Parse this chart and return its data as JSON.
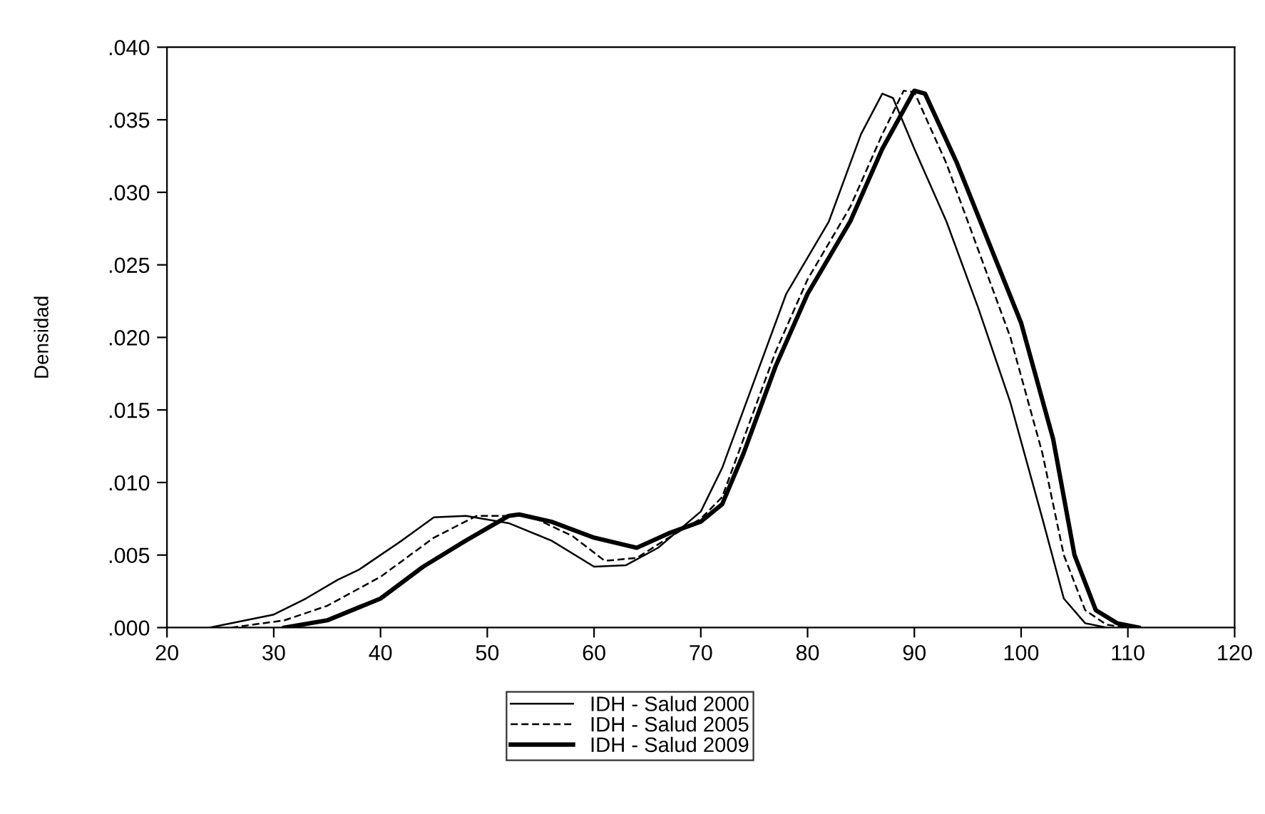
{
  "chart_data": {
    "type": "line",
    "ylabel": "Densidad",
    "xlim": [
      20,
      120
    ],
    "ylim": [
      0,
      0.04
    ],
    "xticks": [
      20,
      30,
      40,
      50,
      60,
      70,
      80,
      90,
      100,
      110,
      120
    ],
    "yticks": [
      {
        "value": 0,
        "label": ".000"
      },
      {
        "value": 0.005,
        "label": ".005"
      },
      {
        "value": 0.01,
        "label": ".010"
      },
      {
        "value": 0.015,
        "label": ".015"
      },
      {
        "value": 0.02,
        "label": ".020"
      },
      {
        "value": 0.025,
        "label": ".025"
      },
      {
        "value": 0.03,
        "label": ".030"
      },
      {
        "value": 0.035,
        "label": ".035"
      },
      {
        "value": 0.04,
        "label": ".040"
      }
    ],
    "grid": false,
    "legend": "bottom",
    "marker": "none",
    "series": [
      {
        "name": "IDH - Salud 2000",
        "color": "#000000",
        "line_style": "solid",
        "x": [
          24,
          30,
          33,
          36,
          38,
          42,
          45,
          48,
          52,
          56,
          60,
          63,
          66,
          70,
          72,
          75,
          78,
          82,
          85,
          87,
          88,
          90,
          93,
          96,
          99,
          102,
          104,
          106,
          108
        ],
        "values": [
          0,
          0.0009,
          0.002,
          0.0033,
          0.004,
          0.006,
          0.0076,
          0.0077,
          0.0072,
          0.006,
          0.0042,
          0.0043,
          0.0055,
          0.008,
          0.011,
          0.017,
          0.023,
          0.028,
          0.034,
          0.0368,
          0.0365,
          0.033,
          0.028,
          0.022,
          0.0155,
          0.0075,
          0.002,
          0.0003,
          0
        ]
      },
      {
        "name": "IDH - Salud 2005",
        "color": "#000000",
        "line_style": "dashed",
        "x": [
          26,
          31,
          35,
          40,
          45,
          49,
          54,
          58,
          61,
          64,
          67,
          70,
          72,
          74,
          77,
          80,
          84,
          87,
          89,
          90,
          93,
          96,
          99,
          102,
          104,
          106,
          108,
          110
        ],
        "values": [
          0,
          0.0005,
          0.0015,
          0.0035,
          0.0062,
          0.0077,
          0.0077,
          0.0063,
          0.0046,
          0.0048,
          0.0062,
          0.0075,
          0.009,
          0.013,
          0.019,
          0.024,
          0.029,
          0.034,
          0.037,
          0.0369,
          0.032,
          0.026,
          0.02,
          0.012,
          0.005,
          0.0012,
          0.0002,
          0
        ]
      },
      {
        "name": "IDH - Salud 2009",
        "color": "#000000",
        "line_style": "solid",
        "x": [
          31,
          35,
          40,
          44,
          48,
          52,
          53,
          56,
          60,
          64,
          67,
          70,
          72,
          74,
          77,
          80,
          84,
          87,
          90,
          91,
          94,
          97,
          100,
          103,
          105,
          107,
          109,
          111
        ],
        "values": [
          0,
          0.0005,
          0.002,
          0.0042,
          0.006,
          0.0077,
          0.0078,
          0.0073,
          0.0062,
          0.0055,
          0.0065,
          0.0073,
          0.0085,
          0.012,
          0.018,
          0.023,
          0.028,
          0.033,
          0.037,
          0.0368,
          0.032,
          0.0265,
          0.021,
          0.013,
          0.005,
          0.0012,
          0.0003,
          0
        ]
      }
    ]
  }
}
